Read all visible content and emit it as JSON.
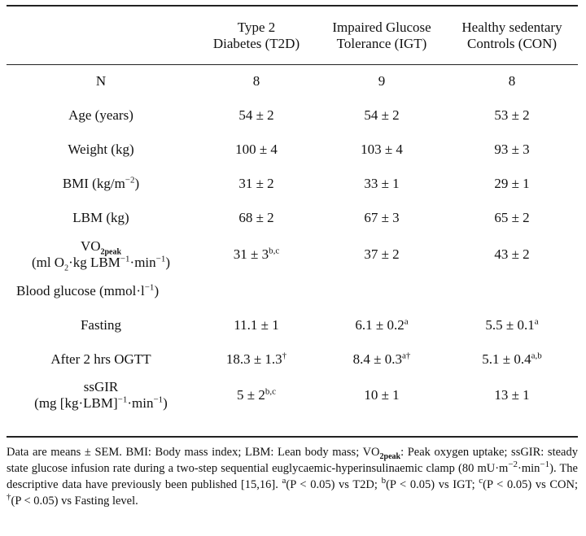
{
  "table": {
    "headers": [
      "",
      "Type 2 Diabetes (T2D)",
      "Impaired Glucose Tolerance (IGT)",
      "Healthy sedentary Controls (CON)"
    ],
    "header_lines": [
      [
        "",
        ""
      ],
      [
        "Type 2",
        "Diabetes (T2D)"
      ],
      [
        "Impaired Glucose",
        "Tolerance (IGT)"
      ],
      [
        "Healthy sedentary",
        "Controls (CON)"
      ]
    ],
    "rows": [
      {
        "label": "N",
        "values": [
          "8",
          "9",
          "8"
        ]
      },
      {
        "label": "Age (years)",
        "values": [
          "54 ± 2",
          "54 ± 2",
          "53 ± 2"
        ]
      },
      {
        "label": "Weight (kg)",
        "values": [
          "100 ± 4",
          "103 ± 4",
          "93 ± 3"
        ]
      },
      {
        "label": "BMI (kg/m−2)",
        "values": [
          "31 ± 2",
          "33 ± 1",
          "29 ± 1"
        ]
      },
      {
        "label": "LBM (kg)",
        "values": [
          "68 ± 2",
          "67 ± 3",
          "65 ± 2"
        ]
      },
      {
        "label": "VO2peak (ml O2·kg LBM−1·min−1)",
        "values": [
          "31 ± 3b,c",
          "37 ± 2",
          "43 ± 2"
        ]
      },
      {
        "label": "Blood glucose (mmol·l−1)",
        "values": [
          "",
          "",
          ""
        ]
      },
      {
        "label": "Fasting",
        "values": [
          "11.1 ± 1",
          "6.1 ± 0.2a",
          "5.5 ± 0.1a"
        ]
      },
      {
        "label": "After 2 hrs OGTT",
        "values": [
          "18.3 ± 1.3†",
          "8.4 ± 0.3a†",
          "5.1 ± 0.4a,b"
        ]
      },
      {
        "label": "ssGIR (mg [kg·LBM]−1·min−1)",
        "values": [
          "5 ± 2b,c",
          "10 ± 1",
          "13 ± 1"
        ]
      }
    ]
  },
  "footnote": "Data are means ± SEM. BMI: Body mass index; LBM: Lean body mass; VO2peak: Peak oxygen uptake; ssGIR: steady state glucose infusion rate during a two-step sequential euglycaemic-hyperinsulinaemic clamp (80 mU·m−2·min−1). The descriptive data have previously been published [15,16]. a(P < 0.05) vs T2D; b(P < 0.05) vs IGT; c(P < 0.05) vs CON; †(P < 0.05) vs Fasting level."
}
